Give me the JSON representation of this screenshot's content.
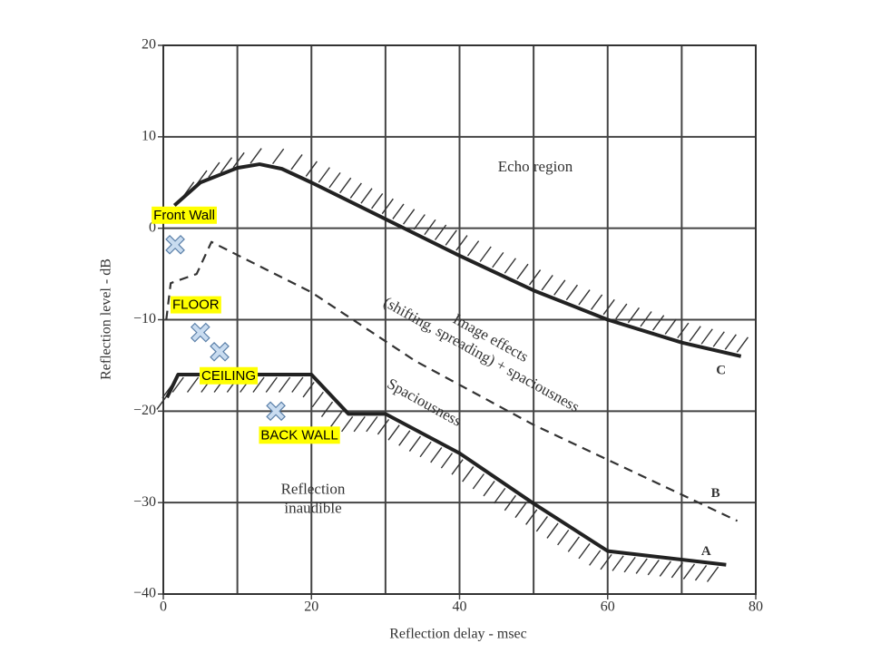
{
  "chart_data": {
    "type": "line",
    "xlabel": "Reflection delay - msec",
    "ylabel": "Reflection level - dB",
    "xlim": [
      0,
      80
    ],
    "ylim": [
      -40,
      20
    ],
    "xticks": [
      0,
      20,
      40,
      60,
      80
    ],
    "xminor": [
      10,
      30,
      50,
      70
    ],
    "yticks": [
      20,
      10,
      {
        "value": 0,
        "label": "0"
      },
      {
        "value": -10,
        "label": "−10"
      },
      {
        "value": -20,
        "label": "−20"
      },
      {
        "value": -30,
        "label": "−30"
      },
      {
        "value": -40,
        "label": "−40"
      }
    ],
    "grid": true,
    "series": [
      {
        "name": "A",
        "color": "#222222",
        "style": "solid",
        "hatch": "below",
        "x": [
          0.5,
          2,
          6,
          20,
          25,
          30,
          40,
          50,
          60,
          76
        ],
        "values": [
          -18.5,
          -16,
          -16,
          -16,
          -20.3,
          -20.3,
          -24.6,
          -30.1,
          -35.3,
          -36.8
        ]
      },
      {
        "name": "B",
        "color": "#333333",
        "style": "dashed",
        "hatch": "none",
        "x": [
          0.4,
          1,
          4.5,
          6.5,
          20,
          34,
          50,
          77.5
        ],
        "values": [
          -10,
          -6,
          -5,
          -1.5,
          -7,
          -14.5,
          -21.5,
          -32
        ]
      },
      {
        "name": "C",
        "color": "#222222",
        "style": "solid",
        "hatch": "above",
        "x": [
          1.5,
          5,
          10,
          13,
          16,
          20,
          30,
          40,
          50,
          60,
          70,
          78
        ],
        "values": [
          2.5,
          5,
          6.6,
          7,
          6.5,
          5,
          1,
          -3,
          -6.8,
          -10,
          -12.5,
          -14
        ]
      }
    ],
    "points": {
      "labels": [
        "Front Wall",
        "FLOOR",
        "CEILING",
        "BACK WALL"
      ],
      "x": [
        1.6,
        5,
        7.6,
        15.2
      ],
      "y": [
        -1.8,
        -11.4,
        -13.5,
        -20
      ],
      "color": "#c9dcf0",
      "label_color": "#ffff00"
    },
    "annotations": [
      {
        "lines": [
          "Echo region"
        ]
      },
      {
        "lines": [
          "Image effects",
          "(shifting, spreading) + spaciousness"
        ]
      },
      {
        "lines": [
          "Spaciousness"
        ]
      },
      {
        "lines": [
          "Reflection",
          "inaudible"
        ]
      }
    ]
  }
}
